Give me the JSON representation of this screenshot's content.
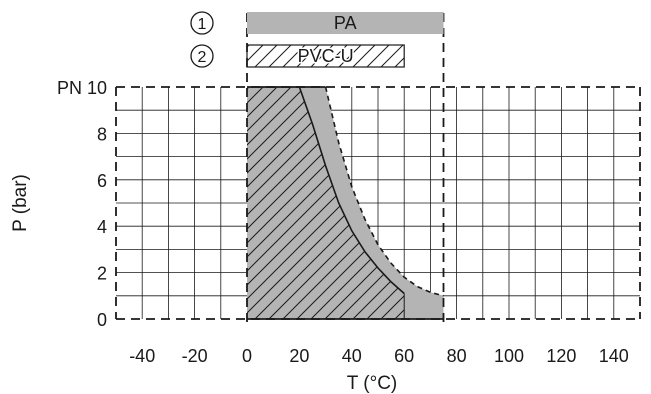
{
  "chart_data": {
    "type": "area",
    "xlabel": "T (°C)",
    "ylabel": "P (bar)",
    "xlim": [
      -50,
      150
    ],
    "ylim": [
      0,
      10
    ],
    "x_ticks": [
      -40,
      -20,
      0,
      20,
      40,
      60,
      80,
      100,
      120,
      140
    ],
    "y_ticks": [
      0,
      2,
      4,
      6,
      8
    ],
    "y_top_label": "PN 10",
    "grid": true,
    "legend": [
      {
        "marker": "①",
        "label": "PA",
        "range": [
          0,
          75
        ],
        "fill": "solid-gray"
      },
      {
        "marker": "②",
        "label": "PVC-U",
        "range": [
          0,
          60
        ],
        "fill": "hatched"
      }
    ],
    "series": [
      {
        "name": "PA",
        "x": [
          0,
          30,
          35,
          40,
          45,
          50,
          55,
          60,
          65,
          70,
          75,
          75
        ],
        "y": [
          10,
          10,
          7.6,
          5.7,
          4.3,
          3.2,
          2.4,
          1.8,
          1.4,
          1.15,
          1,
          0
        ]
      },
      {
        "name": "PVC-U",
        "x": [
          0,
          20,
          25,
          30,
          35,
          40,
          45,
          50,
          55,
          60,
          60
        ],
        "y": [
          10,
          10,
          8.4,
          6.6,
          5.0,
          3.8,
          2.9,
          2.2,
          1.6,
          1.1,
          0
        ]
      }
    ],
    "colors": {
      "pa_fill": "#b4b4b4",
      "line": "#1a1a1a",
      "grid": "#1a1a1a",
      "background": "#ffffff"
    }
  }
}
